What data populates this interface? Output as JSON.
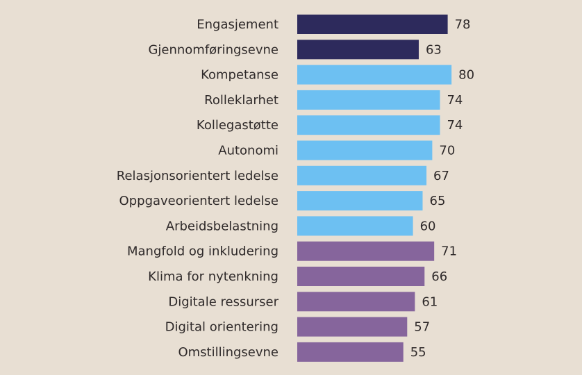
{
  "chart_data": {
    "type": "bar",
    "orientation": "horizontal",
    "title": "",
    "xlabel": "",
    "ylabel": "",
    "xlim": [
      0,
      100
    ],
    "grid": false,
    "legend": "none",
    "categories": [
      "Engasjement",
      "Gjennomføringsevne",
      "Kompetanse",
      "Rolleklarhet",
      "Kollegastøtte",
      "Autonomi",
      "Relasjonsorientert ledelse",
      "Oppgaveorientert ledelse",
      "Arbeidsbelastning",
      "Mangfold og inkludering",
      "Klima for nytenkning",
      "Digitale ressurser",
      "Digital orientering",
      "Omstillingsevne"
    ],
    "values": [
      78,
      63,
      80,
      74,
      74,
      70,
      67,
      65,
      60,
      71,
      66,
      61,
      57,
      55
    ],
    "groups": [
      "outcome",
      "outcome",
      "resource",
      "resource",
      "resource",
      "resource",
      "resource",
      "resource",
      "resource",
      "innovation",
      "innovation",
      "innovation",
      "innovation",
      "innovation"
    ],
    "group_colors": {
      "outcome": "#2d2a5c",
      "resource": "#6dc0f2",
      "innovation": "#86659c"
    },
    "background": "#e8dfd3"
  }
}
